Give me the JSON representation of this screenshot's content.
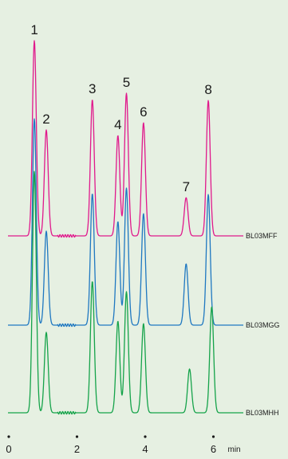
{
  "chart_data": {
    "type": "line",
    "xlabel": "min",
    "xlim": [
      0,
      7.5
    ],
    "x_ticks": [
      "0",
      "2",
      "4",
      "6"
    ],
    "x_tick_values": [
      0,
      2,
      4,
      6
    ],
    "grid": false,
    "peak_labels": [
      {
        "label": "1",
        "x": 0.75
      },
      {
        "label": "2",
        "x": 1.1
      },
      {
        "label": "3",
        "x": 2.45
      },
      {
        "label": "4",
        "x": 3.2
      },
      {
        "label": "5",
        "x": 3.45
      },
      {
        "label": "6",
        "x": 3.95
      },
      {
        "label": "7",
        "x": 5.2
      },
      {
        "label": "8",
        "x": 5.85
      }
    ],
    "series": [
      {
        "name": "BL03MFF",
        "color": "#e0198c",
        "peaks": [
          {
            "x": 0.75,
            "height": 245
          },
          {
            "x": 1.1,
            "height": 133
          },
          {
            "x": 2.45,
            "height": 171
          },
          {
            "x": 3.2,
            "height": 126
          },
          {
            "x": 3.45,
            "height": 179
          },
          {
            "x": 3.95,
            "height": 142
          },
          {
            "x": 5.2,
            "height": 48
          },
          {
            "x": 5.85,
            "height": 170
          }
        ]
      },
      {
        "name": "BL03MGG",
        "color": "#1f78c1",
        "peaks": [
          {
            "x": 0.75,
            "height": 259
          },
          {
            "x": 1.1,
            "height": 118
          },
          {
            "x": 2.45,
            "height": 165
          },
          {
            "x": 3.2,
            "height": 130
          },
          {
            "x": 3.45,
            "height": 172
          },
          {
            "x": 3.95,
            "height": 140
          },
          {
            "x": 5.2,
            "height": 77
          },
          {
            "x": 5.85,
            "height": 164
          }
        ]
      },
      {
        "name": "BL03MHH",
        "color": "#15a34a",
        "peaks": [
          {
            "x": 0.75,
            "height": 303
          },
          {
            "x": 1.1,
            "height": 101
          },
          {
            "x": 2.45,
            "height": 165
          },
          {
            "x": 3.2,
            "height": 115
          },
          {
            "x": 3.45,
            "height": 152
          },
          {
            "x": 3.95,
            "height": 112
          },
          {
            "x": 5.3,
            "height": 55
          },
          {
            "x": 5.95,
            "height": 133
          }
        ]
      }
    ]
  }
}
